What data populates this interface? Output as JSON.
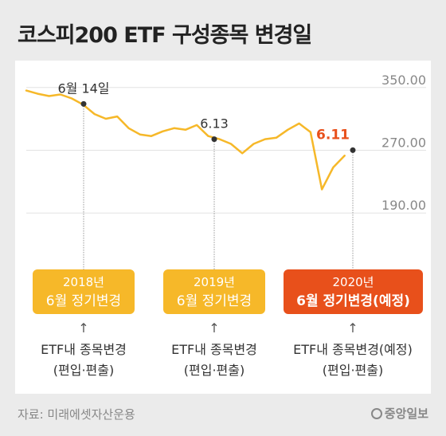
{
  "title": "코스피200 ETF 구성종목 변경일",
  "chart_data": {
    "type": "line",
    "title": "코스피200 ETF 구성종목 변경일",
    "xlabel": "",
    "ylabel": "",
    "ylim": [
      175,
      362
    ],
    "yticks": [
      {
        "value": 350,
        "label": "350.00"
      },
      {
        "value": 270,
        "label": "270.00"
      },
      {
        "value": 190,
        "label": "190.00"
      }
    ],
    "grid": true,
    "series_color": "#f6b829",
    "accent_color": "#e8501b",
    "x": [
      "2018-01",
      "2018-02",
      "2018-03",
      "2018-04",
      "2018-05",
      "2018-06",
      "2018-07",
      "2018-08",
      "2018-09",
      "2018-10",
      "2018-11",
      "2018-12",
      "2019-01",
      "2019-02",
      "2019-03",
      "2019-04",
      "2019-05",
      "2019-06",
      "2019-07",
      "2019-08",
      "2019-09",
      "2019-10",
      "2019-11",
      "2019-12",
      "2020-01",
      "2020-02",
      "2020-03",
      "2020-04",
      "2020-05"
    ],
    "values": [
      338,
      334,
      331,
      333,
      328,
      320,
      308,
      302,
      305,
      290,
      282,
      280,
      286,
      290,
      288,
      294,
      280,
      276,
      270,
      258,
      270,
      276,
      278,
      288,
      296,
      285,
      212,
      240,
      255
    ],
    "annotations": [
      {
        "label": "6월 14일",
        "x": "2018-06",
        "value": 321,
        "highlight": false
      },
      {
        "label": "6.13",
        "x": "2019-06",
        "value": 276,
        "highlight": false
      },
      {
        "label": "6.11",
        "x": "2020-06",
        "value": 262,
        "highlight": true
      }
    ]
  },
  "events": [
    {
      "year": "2018년",
      "label": "6월 정기변경",
      "arrow": "↑",
      "desc_1": "ETF내 종목변경",
      "desc_2": "(편입·편출)",
      "highlight": false
    },
    {
      "year": "2019년",
      "label": "6월 정기변경",
      "arrow": "↑",
      "desc_1": "ETF내 종목변경",
      "desc_2": "(편입·편출)",
      "highlight": false
    },
    {
      "year": "2020년",
      "label": "6월 정기변경(예정)",
      "arrow": "↑",
      "desc_1": "ETF내 종목변경(예정)",
      "desc_2": "(편입·편출)",
      "highlight": true
    }
  ],
  "source": "자료: 미래에셋자산운용",
  "logo": "중앙일보"
}
